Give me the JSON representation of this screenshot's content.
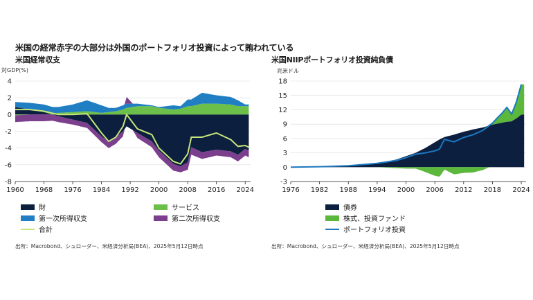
{
  "title": "米国の経常赤字の大部分は外国のポートフォリオ投資によって賄われている",
  "colors": {
    "goods": "#0c1f3f",
    "services": "#6cc04a",
    "primary_income": "#1f7fc2",
    "secondary_income": "#7b3f8e",
    "total": "#c6e67a",
    "bonds": "#0c1f3f",
    "equity": "#5cb83c",
    "portfolio": "#1a78c2"
  },
  "chart_data": [
    {
      "type": "area",
      "title": "米国経常収支",
      "ylabel": "対GDP(%)",
      "ylim": [
        -8,
        4
      ],
      "yticks": [
        4,
        2,
        0,
        -2,
        -4,
        -6,
        -8
      ],
      "xticks": [
        "1960",
        "1968",
        "1976",
        "1984",
        "1992",
        "2000",
        "2008",
        "2016",
        "2024"
      ],
      "x": [
        1960,
        1964,
        1968,
        1972,
        1976,
        1980,
        1984,
        1986,
        1988,
        1990,
        1991,
        1994,
        1998,
        2000,
        2004,
        2006,
        2008,
        2009,
        2012,
        2016,
        2020,
        2022,
        2024,
        2025
      ],
      "series": [
        {
          "name": "財",
          "values": [
            0.9,
            0.6,
            0.3,
            -0.2,
            -0.6,
            -1.0,
            -2.6,
            -3.2,
            -2.7,
            -2.0,
            -1.4,
            -2.2,
            -3.2,
            -4.3,
            -5.9,
            -6.2,
            -5.7,
            -3.9,
            -4.5,
            -4.2,
            -4.4,
            -4.8,
            -4.1,
            -4.3
          ]
        },
        {
          "name": "サービス",
          "values": [
            -0.1,
            0.0,
            0.1,
            0.2,
            0.3,
            0.4,
            0.2,
            0.3,
            0.4,
            0.6,
            0.8,
            1.0,
            1.0,
            0.8,
            0.6,
            0.7,
            1.0,
            1.0,
            1.3,
            1.3,
            1.2,
            1.0,
            1.0,
            1.0
          ]
        },
        {
          "name": "第一次所得収支",
          "values": [
            0.6,
            0.8,
            0.8,
            0.7,
            0.9,
            1.3,
            0.9,
            0.5,
            0.4,
            0.5,
            0.5,
            0.3,
            0.1,
            0.1,
            0.5,
            0.3,
            0.8,
            0.8,
            1.3,
            1.0,
            0.9,
            0.7,
            0.2,
            0.2
          ]
        },
        {
          "name": "第二次所得収支",
          "values": [
            -0.8,
            -0.8,
            -0.8,
            -0.7,
            -0.6,
            -0.6,
            -0.7,
            -0.8,
            -0.8,
            -0.6,
            0.8,
            -0.6,
            -0.7,
            -0.8,
            -0.8,
            -0.7,
            -0.9,
            -0.9,
            -0.8,
            -0.7,
            -0.7,
            -0.8,
            -0.8,
            -0.8
          ]
        },
        {
          "name": "合計",
          "values": [
            0.6,
            0.6,
            0.4,
            0.0,
            0.0,
            0.1,
            -2.2,
            -3.2,
            -2.7,
            -1.4,
            0.0,
            -1.7,
            -2.4,
            -4.0,
            -5.6,
            -5.9,
            -4.7,
            -2.7,
            -2.7,
            -2.2,
            -3.0,
            -3.8,
            -3.7,
            -3.9
          ]
        }
      ],
      "legend": [
        "財",
        "サービス",
        "第一次所得収支",
        "第二次所得収支",
        "合計"
      ],
      "legend_position": "bottom",
      "source": "出所：Macrobond、シュローダー、米経済分析局(BEA)、2025年5月12日時点"
    },
    {
      "type": "area",
      "title": "米国NIIPポートフォリオ投資純負債",
      "ylabel": "兆米ドル",
      "ylim": [
        -3,
        18
      ],
      "yticks": [
        18,
        15,
        12,
        9,
        6,
        3,
        0,
        -3
      ],
      "xticks": [
        "1976",
        "1982",
        "1988",
        "1994",
        "2000",
        "2006",
        "2012",
        "2018",
        "2024"
      ],
      "x": [
        1976,
        1982,
        1988,
        1994,
        1998,
        2000,
        2002,
        2004,
        2006,
        2007,
        2008,
        2010,
        2012,
        2014,
        2016,
        2018,
        2019,
        2020,
        2021,
        2022,
        2023,
        2024
      ],
      "series": [
        {
          "name": "債券",
          "values": [
            0.0,
            0.1,
            0.3,
            0.8,
            1.6,
            2.3,
            3.0,
            4.0,
            5.2,
            5.8,
            6.3,
            6.8,
            7.4,
            7.9,
            8.3,
            8.9,
            9.1,
            9.3,
            9.5,
            9.6,
            10.2,
            11.0
          ]
        },
        {
          "name": "株式、投資ファンド",
          "values": [
            0.0,
            0.0,
            0.0,
            0.0,
            -0.2,
            -0.3,
            -0.3,
            -1.0,
            -1.8,
            -2.0,
            -0.5,
            -1.5,
            -1.2,
            -1.1,
            -0.6,
            0.3,
            1.2,
            2.0,
            3.0,
            1.5,
            3.5,
            6.3
          ]
        },
        {
          "name": "ポートフォリオ投資",
          "values": [
            0.0,
            0.1,
            0.3,
            0.8,
            1.4,
            2.0,
            2.7,
            3.0,
            3.4,
            3.8,
            5.8,
            5.3,
            6.2,
            6.8,
            7.7,
            9.2,
            10.3,
            11.3,
            12.5,
            11.1,
            13.7,
            17.3
          ]
        }
      ],
      "legend": [
        "債券",
        "株式、投資ファンド",
        "ポートフォリオ投資"
      ],
      "legend_position": "bottom",
      "source": "出所：Macrobond、シュローダー、米経済分析局(BEA)、2025年5月12日時点"
    }
  ]
}
